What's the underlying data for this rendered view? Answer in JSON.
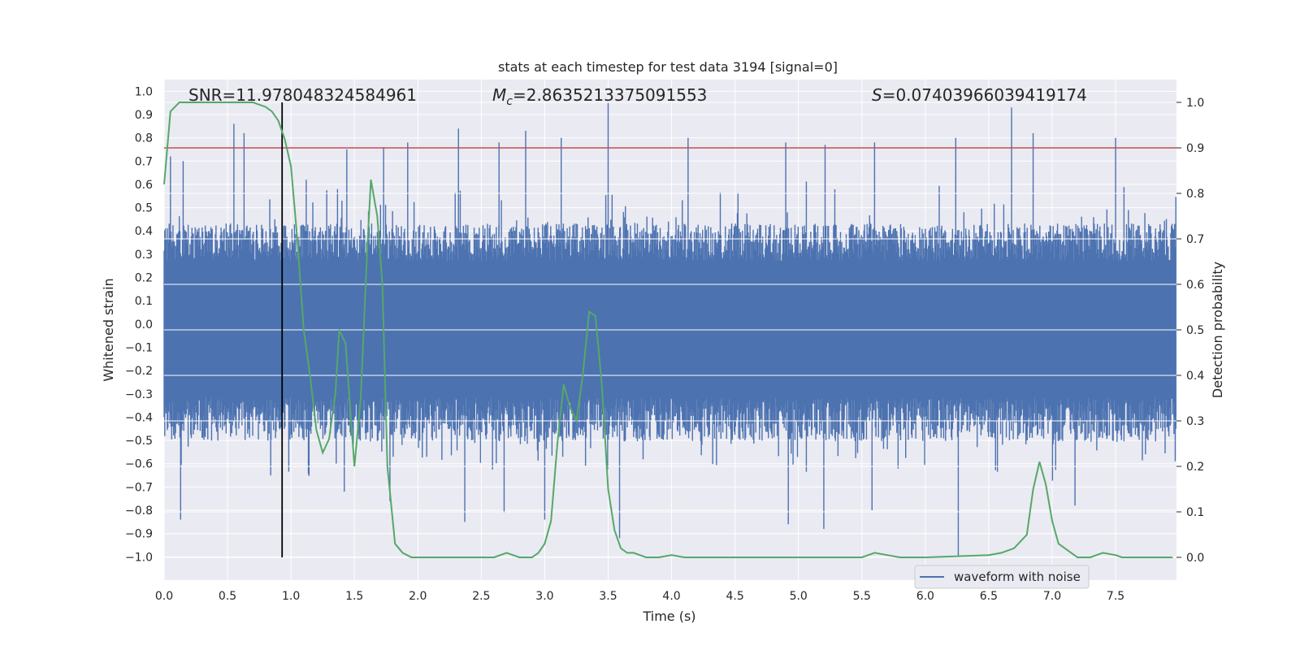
{
  "chart_data": {
    "type": "line",
    "title": "stats at each timestep for test data 3194 [signal=0]",
    "xlabel": "Time (s)",
    "ylabel_left": "Whitened strain",
    "ylabel_right": "Detection probability",
    "xlim": [
      0,
      7.98
    ],
    "ylim_left": [
      -1.1,
      1.05
    ],
    "ylim_right": [
      -0.05,
      1.05
    ],
    "x_ticks": [
      0.0,
      0.5,
      1.0,
      1.5,
      2.0,
      2.5,
      3.0,
      3.5,
      4.0,
      4.5,
      5.0,
      5.5,
      6.0,
      6.5,
      7.0,
      7.5
    ],
    "x_tick_labels": [
      "0.0",
      "0.5",
      "1.0",
      "1.5",
      "2.0",
      "2.5",
      "3.0",
      "3.5",
      "4.0",
      "4.5",
      "5.0",
      "5.5",
      "6.0",
      "6.5",
      "7.0",
      "7.5"
    ],
    "y_ticks_left": [
      1.0,
      0.9,
      0.8,
      0.7,
      0.6,
      0.5,
      0.4,
      0.3,
      0.2,
      0.1,
      0.0,
      -0.1,
      -0.2,
      -0.3,
      -0.4,
      -0.5,
      -0.6,
      -0.7,
      -0.8,
      -0.9,
      -1.0
    ],
    "y_tick_labels_left": [
      "1.0",
      "0.9",
      "0.8",
      "0.7",
      "0.6",
      "0.5",
      "0.4",
      "0.3",
      "0.2",
      "0.1",
      "0.0",
      "−0.1",
      "−0.2",
      "−0.3",
      "−0.4",
      "−0.5",
      "−0.6",
      "−0.7",
      "−0.8",
      "−0.9",
      "−1.0"
    ],
    "y_ticks_right": [
      1.0,
      0.9,
      0.8,
      0.7,
      0.6,
      0.5,
      0.4,
      0.3,
      0.2,
      0.1,
      0.0
    ],
    "y_tick_labels_right": [
      "1.0",
      "0.9",
      "0.8",
      "0.7",
      "0.6",
      "0.5",
      "0.4",
      "0.3",
      "0.2",
      "0.1",
      "0.0"
    ],
    "grid": true,
    "legend": {
      "location": "bottom-right",
      "entries": [
        "waveform with noise"
      ]
    },
    "annotations": {
      "snr": "SNR=11.978048324584961",
      "mc_symbol": "M",
      "mc_sub": "c",
      "mc_value": "=2.8635213375091553",
      "s_symbol": "S",
      "s_value": "=0.07403966039419174"
    },
    "threshold_probability": 0.9,
    "marker_time": 0.93,
    "series": [
      {
        "name": "waveform with noise",
        "axis": "left",
        "style": "dense-noise",
        "typical_range": [
          -0.42,
          0.36
        ],
        "sample_count": 1600,
        "spikes": [
          [
            0.05,
            0.72
          ],
          [
            0.15,
            0.7
          ],
          [
            0.55,
            0.86
          ],
          [
            0.63,
            0.82
          ],
          [
            0.93,
            0.63
          ],
          [
            1.12,
            0.62
          ],
          [
            1.44,
            0.75
          ],
          [
            1.73,
            0.76
          ],
          [
            1.92,
            0.78
          ],
          [
            2.32,
            0.84
          ],
          [
            2.64,
            0.78
          ],
          [
            2.85,
            0.83
          ],
          [
            3.13,
            0.8
          ],
          [
            3.5,
            0.95
          ],
          [
            4.13,
            0.8
          ],
          [
            4.9,
            0.78
          ],
          [
            5.21,
            0.77
          ],
          [
            5.6,
            0.78
          ],
          [
            6.24,
            0.8
          ],
          [
            6.68,
            0.93
          ],
          [
            6.85,
            0.82
          ],
          [
            7.5,
            0.8
          ],
          [
            0.13,
            -0.84
          ],
          [
            0.84,
            -0.65
          ],
          [
            1.42,
            -0.72
          ],
          [
            1.78,
            -0.76
          ],
          [
            2.37,
            -0.85
          ],
          [
            2.68,
            -0.81
          ],
          [
            3.0,
            -0.84
          ],
          [
            3.59,
            -0.92
          ],
          [
            4.92,
            -0.86
          ],
          [
            5.2,
            -0.88
          ],
          [
            5.58,
            -0.8
          ],
          [
            6.26,
            -1.0
          ],
          [
            7.18,
            -0.78
          ]
        ]
      },
      {
        "name": "detection probability",
        "axis": "right",
        "style": "line",
        "x": [
          0.0,
          0.05,
          0.12,
          0.3,
          0.5,
          0.7,
          0.8,
          0.85,
          0.9,
          0.95,
          1.0,
          1.05,
          1.1,
          1.15,
          1.2,
          1.25,
          1.3,
          1.35,
          1.38,
          1.43,
          1.5,
          1.55,
          1.6,
          1.63,
          1.68,
          1.72,
          1.76,
          1.82,
          1.88,
          1.95,
          2.0,
          2.1,
          2.3,
          2.5,
          2.6,
          2.7,
          2.8,
          2.9,
          2.95,
          3.0,
          3.05,
          3.1,
          3.15,
          3.2,
          3.25,
          3.3,
          3.35,
          3.4,
          3.45,
          3.5,
          3.55,
          3.6,
          3.65,
          3.7,
          3.75,
          3.8,
          3.9,
          4.0,
          4.1,
          4.2,
          4.5,
          5.0,
          5.5,
          5.6,
          5.7,
          5.8,
          6.0,
          6.5,
          6.6,
          6.7,
          6.8,
          6.85,
          6.9,
          6.95,
          7.0,
          7.05,
          7.1,
          7.15,
          7.2,
          7.3,
          7.35,
          7.4,
          7.5,
          7.55,
          7.6,
          7.7,
          7.8,
          7.9,
          7.95
        ],
        "y": [
          0.82,
          0.98,
          1.0,
          1.0,
          1.0,
          1.0,
          0.99,
          0.98,
          0.96,
          0.92,
          0.86,
          0.7,
          0.5,
          0.4,
          0.28,
          0.23,
          0.26,
          0.36,
          0.5,
          0.47,
          0.2,
          0.35,
          0.67,
          0.83,
          0.75,
          0.6,
          0.2,
          0.03,
          0.01,
          0.0,
          0.0,
          0.0,
          0.0,
          0.0,
          0.0,
          0.01,
          0.0,
          0.0,
          0.01,
          0.03,
          0.08,
          0.25,
          0.38,
          0.33,
          0.3,
          0.4,
          0.54,
          0.53,
          0.38,
          0.15,
          0.06,
          0.02,
          0.01,
          0.01,
          0.005,
          0.0,
          0.0,
          0.005,
          0.0,
          0.0,
          0.0,
          0.0,
          0.0,
          0.01,
          0.005,
          0.0,
          0.0,
          0.005,
          0.01,
          0.02,
          0.05,
          0.15,
          0.21,
          0.16,
          0.08,
          0.03,
          0.02,
          0.01,
          0.0,
          0.0,
          0.005,
          0.01,
          0.005,
          0.0,
          0.0,
          0.0,
          0.0,
          0.0,
          0.0
        ]
      }
    ]
  }
}
